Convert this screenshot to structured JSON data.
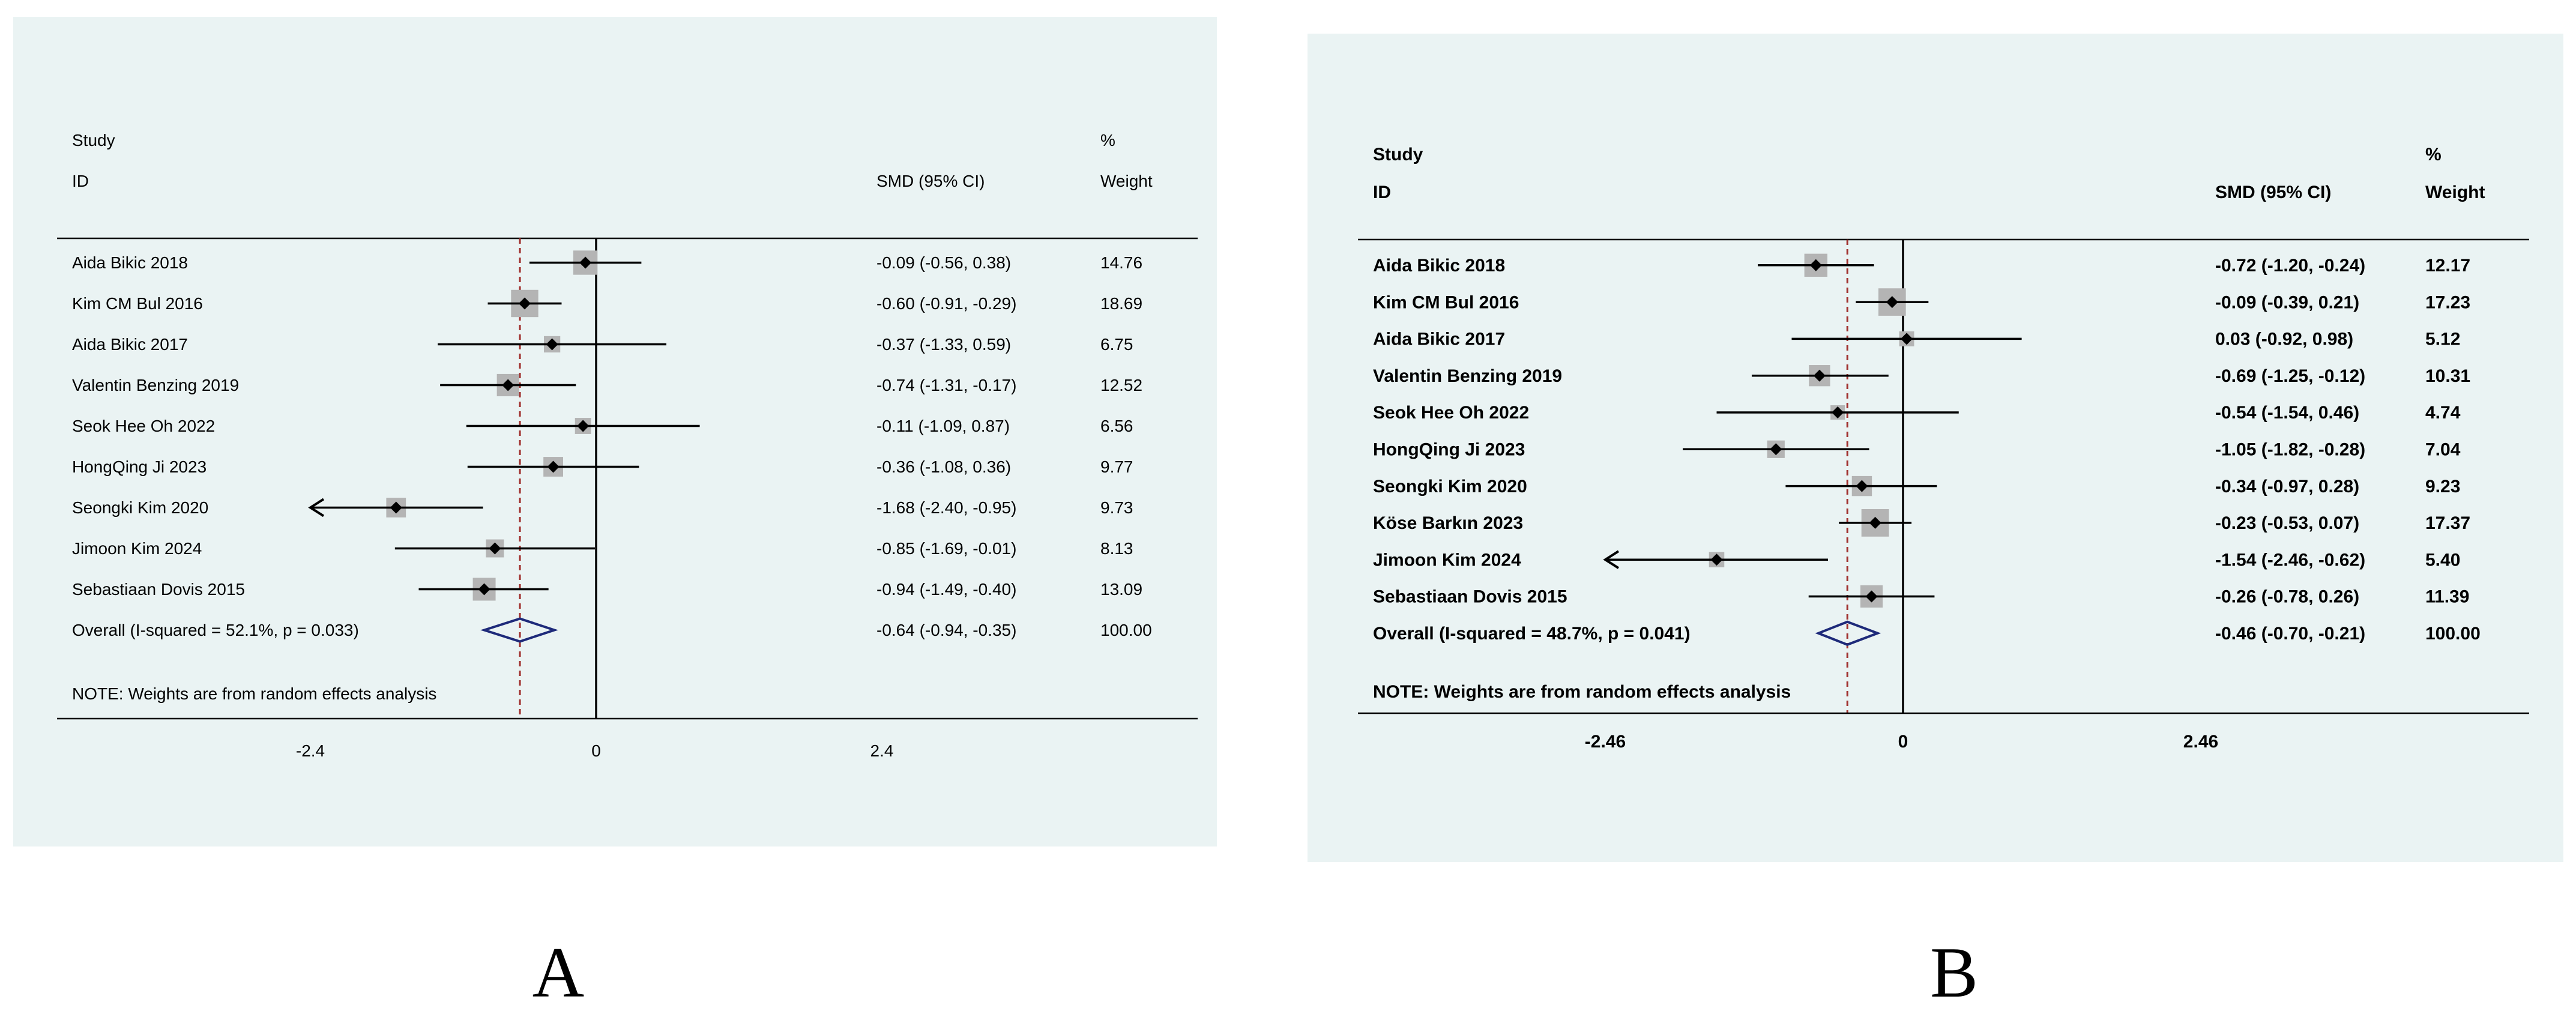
{
  "panel_bg": "#eaf3f3",
  "line_color": "#000000",
  "overall_line_color": "#a0302e",
  "diamond_color": "#1e2a7a",
  "box_color": "#b4b4b4",
  "chart_data": [
    {
      "type": "forest",
      "panel_label": "A",
      "bold": false,
      "header": {
        "study": "Study",
        "id": "ID",
        "smd": "SMD (95% CI)",
        "pct": "%",
        "weight": "Weight"
      },
      "axis": {
        "min": -2.4,
        "max": 2.4,
        "ticks": [
          "-2.4",
          "0",
          "2.4"
        ]
      },
      "note": "NOTE: Weights are from random effects analysis",
      "studies": [
        {
          "label": "Aida Bikic 2018",
          "est": -0.09,
          "lo": -0.56,
          "hi": 0.38,
          "ci_text": "-0.09 (-0.56, 0.38)",
          "weight": "14.76",
          "w": 14.76
        },
        {
          "label": "Kim CM Bul 2016",
          "est": -0.6,
          "lo": -0.91,
          "hi": -0.29,
          "ci_text": "-0.60 (-0.91, -0.29)",
          "weight": "18.69",
          "w": 18.69
        },
        {
          "label": "Aida Bikic 2017",
          "est": -0.37,
          "lo": -1.33,
          "hi": 0.59,
          "ci_text": "-0.37 (-1.33, 0.59)",
          "weight": "6.75",
          "w": 6.75
        },
        {
          "label": "Valentin Benzing 2019",
          "est": -0.74,
          "lo": -1.31,
          "hi": -0.17,
          "ci_text": "-0.74 (-1.31, -0.17)",
          "weight": "12.52",
          "w": 12.52
        },
        {
          "label": "Seok Hee Oh 2022",
          "est": -0.11,
          "lo": -1.09,
          "hi": 0.87,
          "ci_text": "-0.11 (-1.09, 0.87)",
          "weight": "6.56",
          "w": 6.56
        },
        {
          "label": "HongQing Ji 2023",
          "est": -0.36,
          "lo": -1.08,
          "hi": 0.36,
          "ci_text": "-0.36 (-1.08, 0.36)",
          "weight": "9.77",
          "w": 9.77
        },
        {
          "label": "Seongki Kim 2020",
          "est": -1.68,
          "lo": -2.4,
          "hi": -0.95,
          "ci_text": "-1.68 (-2.40, -0.95)",
          "weight": "9.73",
          "w": 9.73
        },
        {
          "label": "Jimoon Kim 2024",
          "est": -0.85,
          "lo": -1.69,
          "hi": -0.01,
          "ci_text": "-0.85 (-1.69, -0.01)",
          "weight": "8.13",
          "w": 8.13
        },
        {
          "label": "Sebastiaan Dovis 2015",
          "est": -0.94,
          "lo": -1.49,
          "hi": -0.4,
          "ci_text": "-0.94 (-1.49, -0.40)",
          "weight": "13.09",
          "w": 13.09
        }
      ],
      "overall": {
        "label": "Overall  (I-squared = 52.1%, p = 0.033)",
        "est": -0.64,
        "lo": -0.94,
        "hi": -0.35,
        "ci_text": "-0.64 (-0.94, -0.35)",
        "weight": "100.00"
      }
    },
    {
      "type": "forest",
      "panel_label": "B",
      "bold": true,
      "header": {
        "study": "Study",
        "id": "ID",
        "smd": "SMD (95% CI)",
        "pct": "%",
        "weight": "Weight"
      },
      "axis": {
        "min": -2.46,
        "max": 2.46,
        "ticks": [
          "-2.46",
          "0",
          "2.46"
        ]
      },
      "note": "NOTE: Weights are from random effects analysis",
      "studies": [
        {
          "label": "Aida Bikic 2018",
          "est": -0.72,
          "lo": -1.2,
          "hi": -0.24,
          "ci_text": "-0.72 (-1.20, -0.24)",
          "weight": "12.17",
          "w": 12.17
        },
        {
          "label": "Kim CM Bul 2016",
          "est": -0.09,
          "lo": -0.39,
          "hi": 0.21,
          "ci_text": "-0.09 (-0.39, 0.21)",
          "weight": "17.23",
          "w": 17.23
        },
        {
          "label": "Aida Bikic 2017",
          "est": 0.03,
          "lo": -0.92,
          "hi": 0.98,
          "ci_text": "0.03 (-0.92, 0.98)",
          "weight": "5.12",
          "w": 5.12
        },
        {
          "label": "Valentin Benzing 2019",
          "est": -0.69,
          "lo": -1.25,
          "hi": -0.12,
          "ci_text": "-0.69 (-1.25, -0.12)",
          "weight": "10.31",
          "w": 10.31
        },
        {
          "label": "Seok Hee Oh 2022",
          "est": -0.54,
          "lo": -1.54,
          "hi": 0.46,
          "ci_text": "-0.54 (-1.54, 0.46)",
          "weight": "4.74",
          "w": 4.74
        },
        {
          "label": "HongQing Ji 2023",
          "est": -1.05,
          "lo": -1.82,
          "hi": -0.28,
          "ci_text": "-1.05 (-1.82, -0.28)",
          "weight": "7.04",
          "w": 7.04
        },
        {
          "label": "Seongki Kim 2020",
          "est": -0.34,
          "lo": -0.97,
          "hi": 0.28,
          "ci_text": "-0.34 (-0.97, 0.28)",
          "weight": "9.23",
          "w": 9.23
        },
        {
          "label": "Köse Barkın 2023",
          "est": -0.23,
          "lo": -0.53,
          "hi": 0.07,
          "ci_text": "-0.23 (-0.53, 0.07)",
          "weight": "17.37",
          "w": 17.37
        },
        {
          "label": "Jimoon Kim 2024",
          "est": -1.54,
          "lo": -2.46,
          "hi": -0.62,
          "ci_text": "-1.54 (-2.46, -0.62)",
          "weight": "5.40",
          "w": 5.4
        },
        {
          "label": "Sebastiaan Dovis 2015",
          "est": -0.26,
          "lo": -0.78,
          "hi": 0.26,
          "ci_text": "-0.26 (-0.78, 0.26)",
          "weight": "11.39",
          "w": 11.39
        }
      ],
      "overall": {
        "label": "Overall  (I-squared = 48.7%, p = 0.041)",
        "est": -0.46,
        "lo": -0.7,
        "hi": -0.21,
        "ci_text": "-0.46 (-0.70, -0.21)",
        "weight": "100.00"
      }
    }
  ]
}
